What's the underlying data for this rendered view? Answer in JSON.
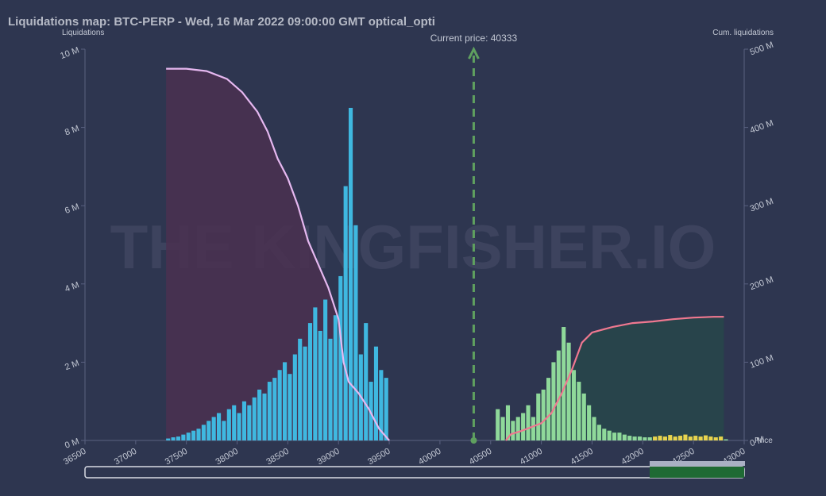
{
  "chart_data": {
    "type": "bar",
    "title": "Liquidations map: BTC-PERP - Wed, 16 Mar 2022 09:00:00 GMT optical_opti",
    "y_label": "Liquidations",
    "y2_label": "Cum. liquidations",
    "x_label": "Price",
    "watermark": "THE KINGFISHER.IO",
    "current_price": {
      "value": 40333,
      "label": "Current price: 40333"
    },
    "xlim": [
      36500,
      43000
    ],
    "xticks": [
      36500,
      37000,
      37500,
      38000,
      38500,
      39000,
      39500,
      40000,
      40500,
      41000,
      41500,
      42000,
      42500,
      43000
    ],
    "ylim": [
      0,
      10
    ],
    "yticks": [
      {
        "value": 0,
        "label": "0 M"
      },
      {
        "value": 2,
        "label": "2 M"
      },
      {
        "value": 4,
        "label": "4 M"
      },
      {
        "value": 6,
        "label": "6 M"
      },
      {
        "value": 8,
        "label": "8 M"
      },
      {
        "value": 10,
        "label": "10 M"
      }
    ],
    "y2lim": [
      0,
      500
    ],
    "y2ticks": [
      {
        "value": 0,
        "label": "0 M"
      },
      {
        "value": 100,
        "label": "100 M"
      },
      {
        "value": 200,
        "label": "200 M"
      },
      {
        "value": 300,
        "label": "300 M"
      },
      {
        "value": 400,
        "label": "400 M"
      },
      {
        "value": 500,
        "label": "500 M"
      }
    ],
    "series": [
      {
        "color": "#3fb8e0",
        "bin_width": 50,
        "x": [
          37300,
          37350,
          37400,
          37450,
          37500,
          37550,
          37600,
          37650,
          37700,
          37750,
          37800,
          37850,
          37900,
          37950,
          38000,
          38050,
          38100,
          38150,
          38200,
          38250,
          38300,
          38350,
          38400,
          38450,
          38500,
          38550,
          38600,
          38650,
          38700,
          38750,
          38800,
          38850,
          38900,
          38950,
          39000,
          39050,
          39100,
          39150,
          39200,
          39250,
          39300,
          39350,
          39400,
          39450
        ],
        "values": [
          0.05,
          0.08,
          0.1,
          0.15,
          0.2,
          0.25,
          0.3,
          0.4,
          0.5,
          0.6,
          0.7,
          0.5,
          0.8,
          0.9,
          0.7,
          1.0,
          0.9,
          1.1,
          1.3,
          1.2,
          1.5,
          1.6,
          1.8,
          2.0,
          1.7,
          2.2,
          2.6,
          2.4,
          3.0,
          3.4,
          2.8,
          3.6,
          2.6,
          3.2,
          4.2,
          6.5,
          8.5,
          5.5,
          2.2,
          3.0,
          1.5,
          2.4,
          1.8,
          1.6
        ]
      },
      {
        "color": "#8fd99a",
        "bin_width": 50,
        "x": [
          40550,
          40600,
          40650,
          40700,
          40750,
          40800,
          40850,
          40900,
          40950,
          41000,
          41050,
          41100,
          41150,
          41200,
          41250,
          41300,
          41350,
          41400,
          41450,
          41500,
          41550,
          41600,
          41650,
          41700,
          41750,
          41800,
          41850,
          41900,
          41950,
          42000,
          42050,
          42100,
          42150,
          42200,
          42250,
          42300,
          42350,
          42400,
          42450,
          42500,
          42550,
          42600,
          42650,
          42700,
          42750,
          42800
        ],
        "values": [
          0.8,
          0.6,
          0.9,
          0.5,
          0.6,
          0.7,
          0.9,
          0.6,
          1.2,
          1.3,
          1.6,
          2.0,
          2.3,
          2.9,
          2.5,
          1.8,
          1.5,
          1.2,
          0.9,
          0.6,
          0.4,
          0.3,
          0.25,
          0.2,
          0.2,
          0.15,
          0.12,
          0.1,
          0.1,
          0.08,
          0.08,
          0.06,
          0.06,
          0.05,
          0.05,
          0.05,
          0.04,
          0.04,
          0.04,
          0.04,
          0.03,
          0.03,
          0.03,
          0.03,
          0.03,
          0.03
        ]
      },
      {
        "color": "#e8d44d",
        "bin_width": 50,
        "x": [
          42100,
          42150,
          42200,
          42250,
          42300,
          42350,
          42400,
          42450,
          42500,
          42550,
          42600,
          42650,
          42700,
          42750
        ],
        "values": [
          0.1,
          0.12,
          0.1,
          0.14,
          0.1,
          0.12,
          0.15,
          0.1,
          0.12,
          0.1,
          0.13,
          0.1,
          0.08,
          0.1
        ]
      },
      {
        "type": "line",
        "axis": "y2",
        "color": "#e6b8f0",
        "fill": "#4a3050",
        "x": [
          37300,
          37500,
          37700,
          37900,
          38050,
          38200,
          38300,
          38400,
          38500,
          38600,
          38700,
          38800,
          38900,
          39000,
          39050,
          39100,
          39200,
          39300,
          39400,
          39500
        ],
        "values": [
          475,
          475,
          472,
          462,
          445,
          420,
          395,
          360,
          335,
          300,
          255,
          225,
          195,
          155,
          100,
          75,
          60,
          40,
          15,
          0
        ]
      },
      {
        "type": "line",
        "axis": "y2",
        "color": "#f07890",
        "fill": "#27464a",
        "x": [
          40650,
          40700,
          40800,
          40900,
          41000,
          41100,
          41200,
          41300,
          41400,
          41500,
          41700,
          41900,
          42100,
          42300,
          42500,
          42700,
          42800
        ],
        "values": [
          0,
          8,
          12,
          17,
          22,
          35,
          60,
          90,
          125,
          138,
          145,
          150,
          152,
          155,
          157,
          158,
          158
        ]
      }
    ]
  }
}
